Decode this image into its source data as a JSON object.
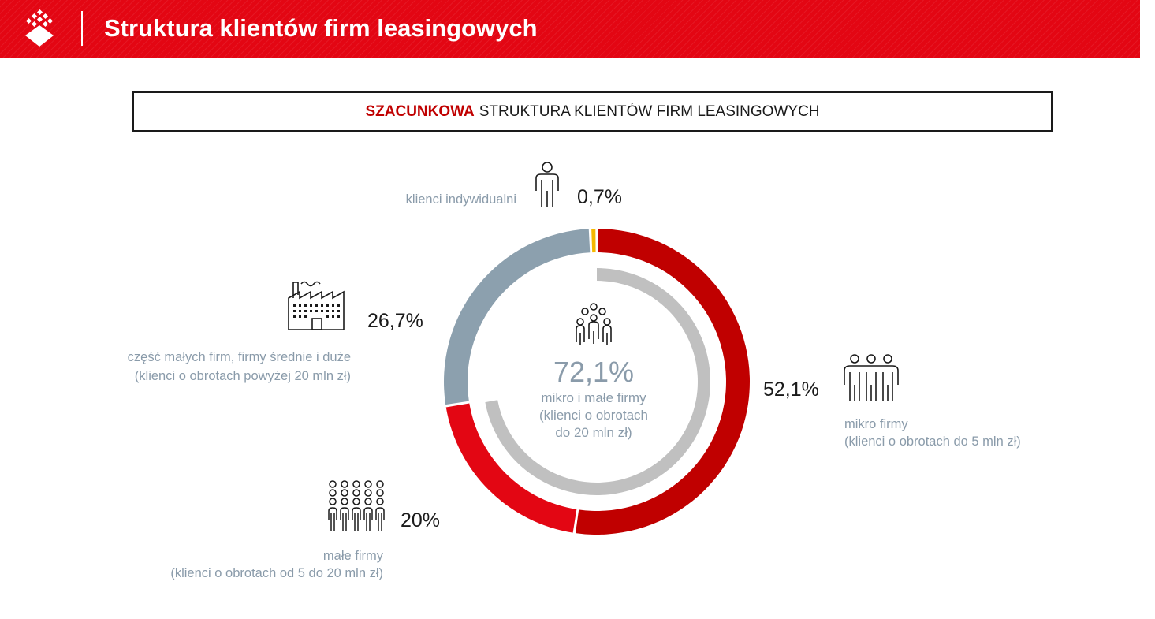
{
  "header": {
    "title": "Struktura klientów firm leasingowych",
    "background_color": "#e30613",
    "logo_icon": "diamond-grid-logo-icon"
  },
  "subtitle": {
    "highlight": "SZACUNKOWA",
    "rest": "STRUKTURA KLIENTÓW FIRM LEASINGOWYCH"
  },
  "chart_data": {
    "type": "pie",
    "subtype": "donut",
    "title": "SZACUNKOWA STRUKTURA KLIENTÓW FIRM LEASINGOWYCH",
    "slices": [
      {
        "key": "mikro",
        "value": 52.1,
        "pct_label": "52,1%",
        "label_line1": "mikro firmy",
        "label_line2": "(klienci o obrotach do 5 mln zł)",
        "color": "#c00000",
        "icon": "three-people-icon"
      },
      {
        "key": "male",
        "value": 20.0,
        "pct_label": "20%",
        "label_line1": "małe firmy",
        "label_line2": "(klienci o obrotach od 5 do 20 mln zł)",
        "color": "#e30613",
        "icon": "crowd-icon"
      },
      {
        "key": "srednie",
        "value": 26.7,
        "pct_label": "26,7%",
        "label_line1": "część małych firm, firmy średnie i duże",
        "label_line2": "(klienci o obrotach powyżej 20 mln zł)",
        "color": "#8ca0ae",
        "icon": "factory-icon"
      },
      {
        "key": "indywidualni",
        "value": 0.7,
        "pct_label": "0,7%",
        "label_line1": "klienci indywidualni",
        "label_line2": "",
        "color": "#f5b800",
        "icon": "person-icon"
      }
    ],
    "inner_arc": {
      "value": 72.1,
      "pct_label": "72,1%",
      "label_line1": "mikro i małe firmy",
      "label_line2": "(klienci o obrotach",
      "label_line3": "do 20 mln zł)",
      "color": "#c0c0c0",
      "icon": "group-icon"
    }
  }
}
